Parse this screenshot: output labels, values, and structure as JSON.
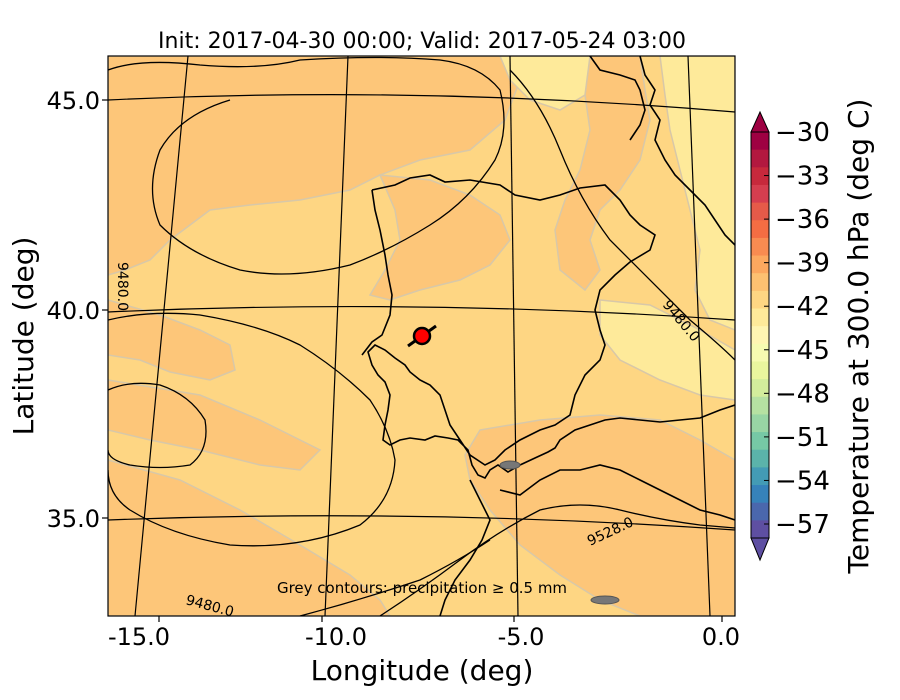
{
  "title": "Init: 2017-04-30 00:00; Valid: 2017-05-24 03:00",
  "x_axis": {
    "label": "Longitude (deg)",
    "ticks": [
      "-15.0",
      "-10.0",
      "-5.0",
      "0.0"
    ]
  },
  "y_axis": {
    "label": "Latitude (deg)",
    "ticks": [
      "45.0",
      "40.0",
      "35.0"
    ]
  },
  "colorbar": {
    "label": "Temperature at 300.0 hPa (deg C)",
    "ticks": [
      "−30",
      "−33",
      "−36",
      "−39",
      "−42",
      "−45",
      "−48",
      "−51",
      "−54",
      "−57"
    ],
    "colors": [
      "#9e0142",
      "#b2183f",
      "#c7293c",
      "#d53e4f",
      "#e55a49",
      "#f46d43",
      "#f88b51",
      "#fca85f",
      "#fdc171",
      "#fed683",
      "#feea9a",
      "#fff5b2",
      "#f7fbb1",
      "#eaf69e",
      "#d3ed9c",
      "#b6e1a2",
      "#98d5a4",
      "#76c8a5",
      "#5bb3aa",
      "#439bb5",
      "#3682ba",
      "#4a67ad",
      "#5e4fa2"
    ],
    "extend": "both"
  },
  "contour_labels": [
    "9480.0",
    "9480.0",
    "9528.0",
    "9480.0"
  ],
  "annotation": "Grey contours: precipitation ≥ 0.5 mm",
  "marker": {
    "name": "point-marker",
    "lon": -7.6,
    "lat": 39.3,
    "color": "#ff0000"
  },
  "fill_colors": {
    "base": "#fed683",
    "warm": "#fdc679",
    "cool": "#feea9a"
  }
}
